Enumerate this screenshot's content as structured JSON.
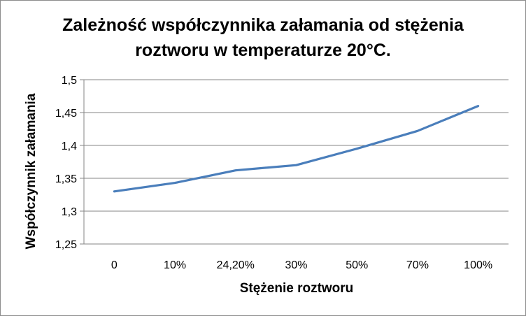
{
  "chart_data": {
    "type": "line",
    "title_lines": [
      "Zależność współczynnika załamania od stężenia",
      "roztworu w temperaturze 20°C."
    ],
    "xlabel": "Stężenie roztworu",
    "ylabel": "Współczynnik załamania",
    "categories": [
      "0",
      "10%",
      "24,20%",
      "30%",
      "50%",
      "70%",
      "100%"
    ],
    "series": [
      {
        "values": [
          1.33,
          1.343,
          1.362,
          1.37,
          1.395,
          1.422,
          1.46
        ]
      }
    ],
    "ylim": [
      1.25,
      1.5
    ],
    "yticks": [
      1.25,
      1.3,
      1.35,
      1.4,
      1.45,
      1.5
    ],
    "ytick_labels": [
      "1,25",
      "1,3",
      "1,35",
      "1,4",
      "1,45",
      "1,5"
    ],
    "grid": "horizontal",
    "colors": {
      "line": "#4a7ebb",
      "grid": "#868686"
    }
  }
}
